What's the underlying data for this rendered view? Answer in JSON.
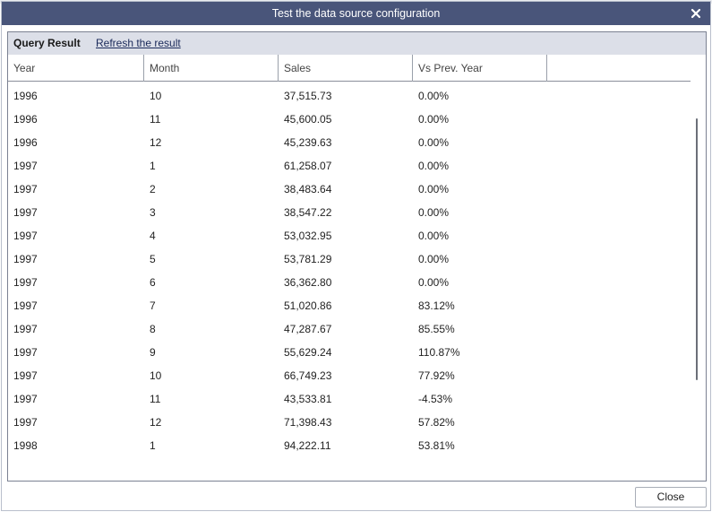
{
  "window": {
    "title": "Test the data source configuration",
    "close_icon": "close-icon"
  },
  "panel": {
    "query_label": "Query Result",
    "refresh_label": "Refresh the result"
  },
  "table": {
    "columns": [
      "Year",
      "Month",
      "Sales",
      "Vs Prev. Year"
    ],
    "rows": [
      [
        "1996",
        "10",
        "37,515.73",
        "0.00%"
      ],
      [
        "1996",
        "11",
        "45,600.05",
        "0.00%"
      ],
      [
        "1996",
        "12",
        "45,239.63",
        "0.00%"
      ],
      [
        "1997",
        "1",
        "61,258.07",
        "0.00%"
      ],
      [
        "1997",
        "2",
        "38,483.64",
        "0.00%"
      ],
      [
        "1997",
        "3",
        "38,547.22",
        "0.00%"
      ],
      [
        "1997",
        "4",
        "53,032.95",
        "0.00%"
      ],
      [
        "1997",
        "5",
        "53,781.29",
        "0.00%"
      ],
      [
        "1997",
        "6",
        "36,362.80",
        "0.00%"
      ],
      [
        "1997",
        "7",
        "51,020.86",
        "83.12%"
      ],
      [
        "1997",
        "8",
        "47,287.67",
        "85.55%"
      ],
      [
        "1997",
        "9",
        "55,629.24",
        "110.87%"
      ],
      [
        "1997",
        "10",
        "66,749.23",
        "77.92%"
      ],
      [
        "1997",
        "11",
        "43,533.81",
        "-4.53%"
      ],
      [
        "1997",
        "12",
        "71,398.43",
        "57.82%"
      ],
      [
        "1998",
        "1",
        "94,222.11",
        "53.81%"
      ]
    ]
  },
  "footer": {
    "close_label": "Close"
  },
  "colors": {
    "title_bar": "#49557a",
    "panel_header": "#dcdfe8",
    "link_text": "#1a2a5a"
  }
}
